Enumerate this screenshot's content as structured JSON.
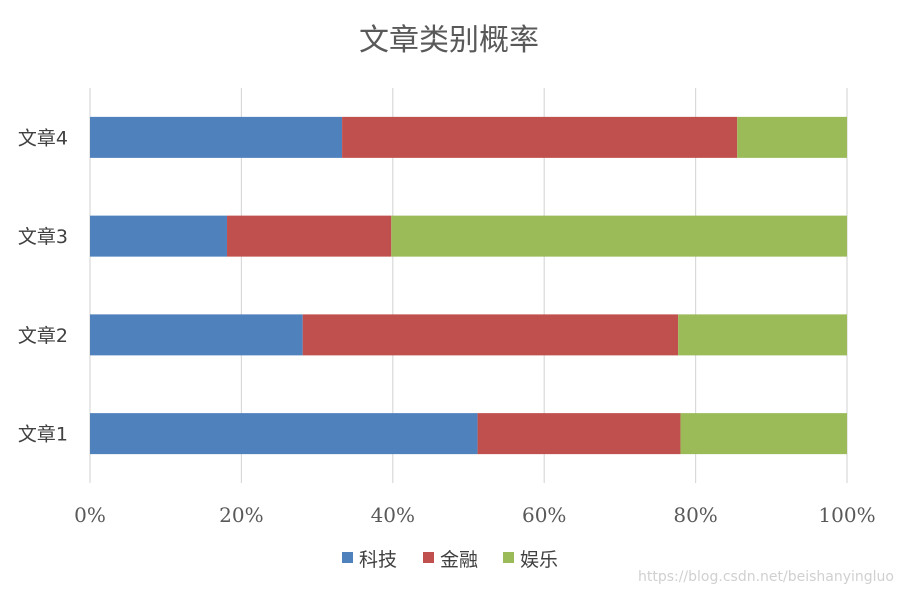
{
  "chart_data": {
    "type": "bar",
    "orientation": "horizontal",
    "stacked": true,
    "normalized": true,
    "title": "文章类别概率",
    "categories": [
      "文章1",
      "文章2",
      "文章3",
      "文章4"
    ],
    "series": [
      {
        "name": "科技",
        "color": "#4F81BD",
        "values": [
          51.2,
          28.1,
          18.1,
          33.3
        ]
      },
      {
        "name": "金融",
        "color": "#C0504D",
        "values": [
          26.8,
          49.6,
          21.7,
          52.2
        ]
      },
      {
        "name": "娱乐",
        "color": "#9BBB59",
        "values": [
          22.0,
          22.3,
          60.2,
          14.5
        ]
      }
    ],
    "xlim": [
      0,
      100
    ],
    "xticks": [
      "0%",
      "20%",
      "40%",
      "60%",
      "80%",
      "100%"
    ],
    "grid": true,
    "legend_position": "bottom"
  },
  "watermark": "https://blog.csdn.net/beishanyingluo"
}
